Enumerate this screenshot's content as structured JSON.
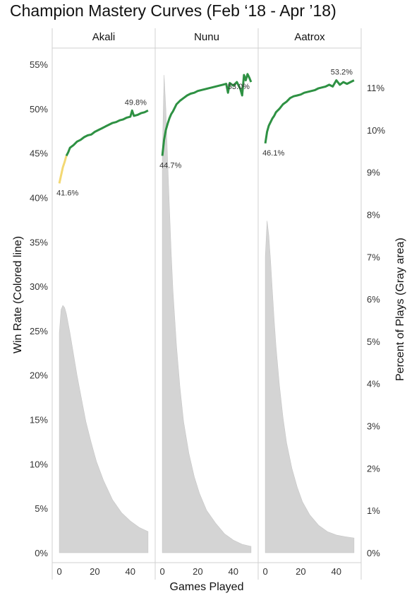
{
  "title": "Champion Mastery Curves (Feb ‘18 - Apr ’18)",
  "chart_data": {
    "type": "line",
    "title": "Champion Mastery Curves (Feb ‘18 - Apr ’18)",
    "xlabel": "Games Played",
    "ylabel_left": "Win Rate (Colored line)",
    "ylabel_right": "Percent of Plays (Gray area)",
    "xlim": [
      -4,
      54
    ],
    "x_ticks": [
      0,
      20,
      40
    ],
    "y_left_lim": [
      0,
      55
    ],
    "y_left_ticks": [
      "0%",
      "5%",
      "10%",
      "15%",
      "20%",
      "25%",
      "30%",
      "35%",
      "40%",
      "45%",
      "50%",
      "55%"
    ],
    "y_right_lim": [
      0,
      11.5
    ],
    "y_right_ticks": [
      "0%",
      "1%",
      "2%",
      "3%",
      "4%",
      "5%",
      "6%",
      "7%",
      "8%",
      "9%",
      "10%",
      "11%"
    ],
    "colors": {
      "win_rate_low": "#f3d873",
      "win_rate": "#2e9143",
      "plays_area": "#d4d4d4"
    },
    "panels": [
      {
        "name": "Akali",
        "win_rate": {
          "x": [
            0,
            1,
            2,
            3,
            4,
            5,
            6,
            8,
            10,
            12,
            14,
            16,
            18,
            20,
            22,
            24,
            26,
            28,
            30,
            32,
            34,
            36,
            38,
            40,
            41,
            42,
            44,
            46,
            48,
            50
          ],
          "y": [
            41.6,
            42.5,
            43.4,
            44.0,
            44.7,
            45.1,
            45.6,
            45.9,
            46.3,
            46.5,
            46.8,
            47.0,
            47.1,
            47.4,
            47.6,
            47.8,
            48.0,
            48.2,
            48.4,
            48.5,
            48.7,
            48.8,
            49.0,
            49.1,
            49.8,
            49.2,
            49.3,
            49.5,
            49.6,
            49.8
          ],
          "low_until_x": 4,
          "labels": [
            {
              "x": 0,
              "y": 41.6,
              "text": "41.6%"
            },
            {
              "x": 50,
              "y": 49.8,
              "text": "49.8%"
            }
          ]
        },
        "plays": {
          "x": [
            0,
            1,
            2,
            3,
            4,
            6,
            8,
            10,
            12,
            15,
            18,
            21,
            25,
            30,
            35,
            40,
            45,
            50
          ],
          "y": [
            5.2,
            5.75,
            5.85,
            5.8,
            5.65,
            5.2,
            4.7,
            4.2,
            3.75,
            3.1,
            2.6,
            2.15,
            1.7,
            1.25,
            0.95,
            0.75,
            0.6,
            0.5
          ]
        }
      },
      {
        "name": "Nunu",
        "win_rate": {
          "x": [
            0,
            1,
            2,
            3,
            4,
            5,
            6,
            8,
            10,
            12,
            14,
            16,
            18,
            20,
            22,
            24,
            26,
            28,
            30,
            32,
            34,
            36,
            37,
            38,
            40,
            42,
            44,
            45,
            46,
            47,
            48,
            49,
            50
          ],
          "y": [
            44.7,
            46.5,
            47.6,
            48.3,
            48.9,
            49.4,
            49.7,
            50.5,
            50.9,
            51.2,
            51.5,
            51.7,
            51.8,
            52.0,
            52.1,
            52.2,
            52.3,
            52.4,
            52.5,
            52.6,
            52.7,
            52.8,
            51.8,
            52.9,
            52.6,
            53.0,
            52.2,
            51.5,
            53.8,
            53.2,
            53.9,
            53.5,
            53.0
          ],
          "low_until_x": 0,
          "labels": [
            {
              "x": 0,
              "y": 44.7,
              "text": "44.7%"
            },
            {
              "x": 50,
              "y": 53.0,
              "text": "53.0%"
            }
          ]
        },
        "plays": {
          "x": [
            0,
            1,
            2,
            3,
            4,
            5,
            6,
            8,
            10,
            12,
            15,
            18,
            21,
            25,
            30,
            35,
            40,
            45,
            50
          ],
          "y": [
            9.4,
            11.3,
            10.5,
            9.3,
            8.2,
            7.1,
            6.2,
            4.9,
            3.9,
            3.1,
            2.35,
            1.8,
            1.4,
            1.0,
            0.7,
            0.45,
            0.3,
            0.2,
            0.15
          ]
        }
      },
      {
        "name": "Aatrox",
        "win_rate": {
          "x": [
            0,
            1,
            2,
            3,
            4,
            5,
            6,
            8,
            10,
            12,
            14,
            16,
            18,
            20,
            22,
            24,
            26,
            28,
            30,
            32,
            34,
            36,
            38,
            40,
            42,
            44,
            46,
            48,
            50
          ],
          "y": [
            46.1,
            47.4,
            48.1,
            48.5,
            48.9,
            49.2,
            49.6,
            50.0,
            50.5,
            50.8,
            51.2,
            51.4,
            51.5,
            51.6,
            51.8,
            51.9,
            52.0,
            52.1,
            52.3,
            52.4,
            52.5,
            52.7,
            52.5,
            53.2,
            52.7,
            53.0,
            52.8,
            53.0,
            53.2
          ],
          "low_until_x": 0,
          "labels": [
            {
              "x": 0,
              "y": 46.1,
              "text": "46.1%"
            },
            {
              "x": 50,
              "y": 53.2,
              "text": "53.2%"
            }
          ]
        },
        "plays": {
          "x": [
            0,
            1,
            2,
            3,
            4,
            5,
            6,
            8,
            10,
            12,
            15,
            18,
            21,
            25,
            30,
            35,
            40,
            45,
            50
          ],
          "y": [
            7.0,
            7.85,
            7.5,
            6.9,
            6.2,
            5.5,
            4.9,
            3.95,
            3.2,
            2.6,
            2.0,
            1.55,
            1.2,
            0.9,
            0.65,
            0.5,
            0.42,
            0.38,
            0.35
          ]
        }
      }
    ]
  }
}
